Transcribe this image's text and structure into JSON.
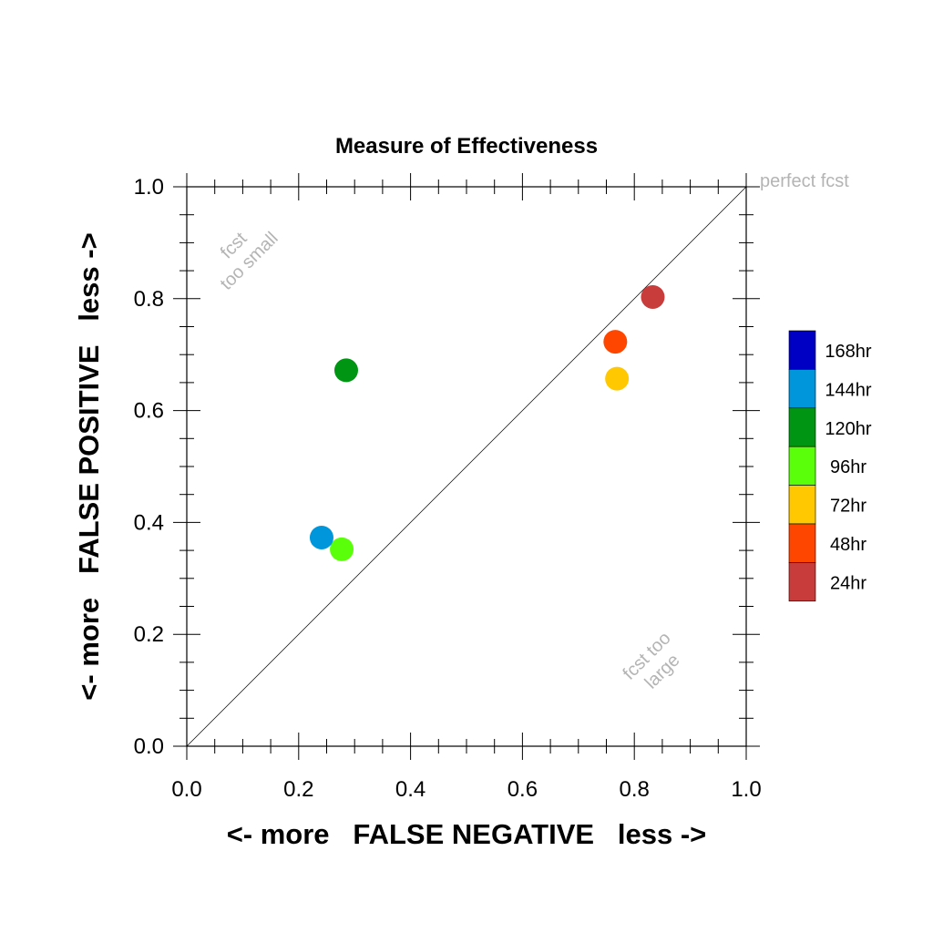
{
  "chart_data": {
    "type": "scatter",
    "title": "Measure of Effectiveness",
    "xlabel": "<- more   FALSE NEGATIVE   less ->",
    "ylabel": "<- more   FALSE POSITIVE   less ->",
    "xlim": [
      0,
      1
    ],
    "ylim": [
      0,
      1
    ],
    "x_ticks": [
      "0.0",
      "0.2",
      "0.4",
      "0.6",
      "0.8",
      "1.0"
    ],
    "y_ticks": [
      "0.0",
      "0.2",
      "0.4",
      "0.6",
      "0.8",
      "1.0"
    ],
    "grid": false,
    "legend_position": "right",
    "reference_line": {
      "from": [
        0,
        0
      ],
      "to": [
        1,
        1
      ]
    },
    "annotations": {
      "perfect": "perfect fcst",
      "too_small": [
        "fcst",
        "too small"
      ],
      "too_large": [
        "fcst too",
        "large"
      ]
    },
    "legend": [
      {
        "label": "168hr",
        "color": "#0000c4"
      },
      {
        "label": "144hr",
        "color": "#0096dc"
      },
      {
        "label": "120hr",
        "color": "#009614"
      },
      {
        "label": "96hr",
        "color": "#5aff0a"
      },
      {
        "label": "72hr",
        "color": "#ffc800"
      },
      {
        "label": "48hr",
        "color": "#ff4600"
      },
      {
        "label": "24hr",
        "color": "#c83c3c"
      }
    ],
    "points": [
      {
        "name": "24hr",
        "x": 0.833,
        "y": 0.803,
        "color": "#c83c3c"
      },
      {
        "name": "48hr",
        "x": 0.766,
        "y": 0.723,
        "color": "#ff4600"
      },
      {
        "name": "72hr",
        "x": 0.769,
        "y": 0.657,
        "color": "#ffc800"
      },
      {
        "name": "96hr",
        "x": 0.277,
        "y": 0.352,
        "color": "#5aff0a"
      },
      {
        "name": "120hr",
        "x": 0.285,
        "y": 0.672,
        "color": "#009614"
      },
      {
        "name": "144hr",
        "x": 0.241,
        "y": 0.373,
        "color": "#0096dc"
      }
    ]
  }
}
